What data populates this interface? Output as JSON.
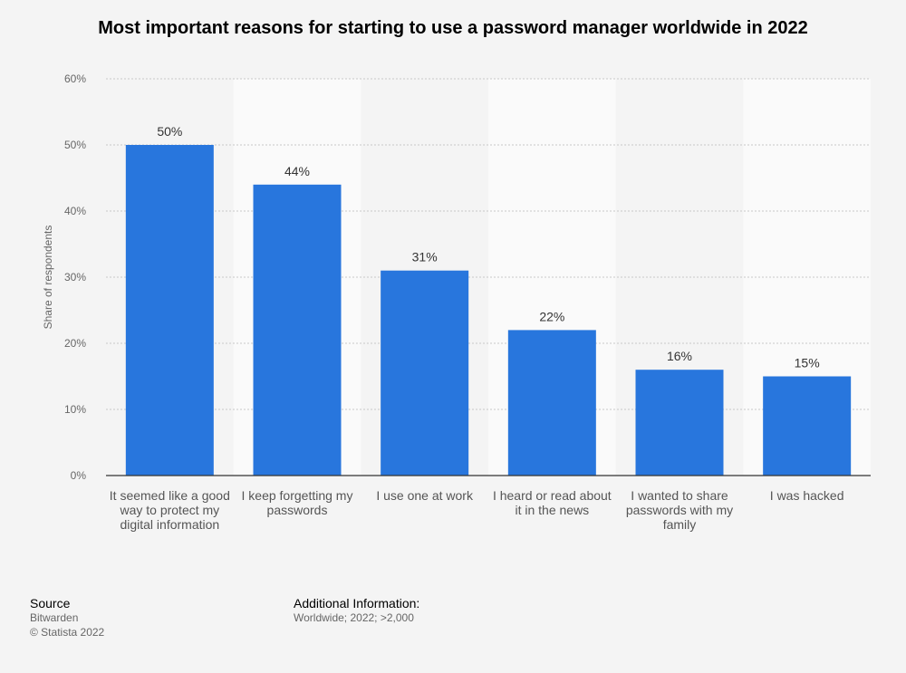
{
  "title": "Most important reasons for starting to use a password manager worldwide in 2022",
  "chart_data": {
    "type": "bar",
    "title": "Most important reasons for starting to use a password manager worldwide in 2022",
    "categories": [
      "It seemed like a good way to protect my digital information",
      "I keep forgetting my passwords",
      "I use one at work",
      "I heard or read about it in the news",
      "I wanted to share passwords with my family",
      "I was hacked"
    ],
    "values": [
      50,
      44,
      31,
      22,
      16,
      15
    ],
    "data_labels": [
      "50%",
      "44%",
      "31%",
      "22%",
      "16%",
      "15%"
    ],
    "ylabel": "Share of respondents",
    "ylim": [
      0,
      60
    ],
    "yticks": [
      0,
      10,
      20,
      30,
      40,
      50,
      60
    ],
    "ytick_labels": [
      "0%",
      "10%",
      "20%",
      "30%",
      "40%",
      "50%",
      "60%"
    ],
    "grid": true,
    "bar_color": "#2876dd"
  },
  "footer": {
    "source_heading": "Source",
    "source_name": "Bitwarden",
    "copyright": "© Statista 2022",
    "additional_heading": "Additional Information:",
    "additional_text": "Worldwide; 2022; >2,000"
  }
}
